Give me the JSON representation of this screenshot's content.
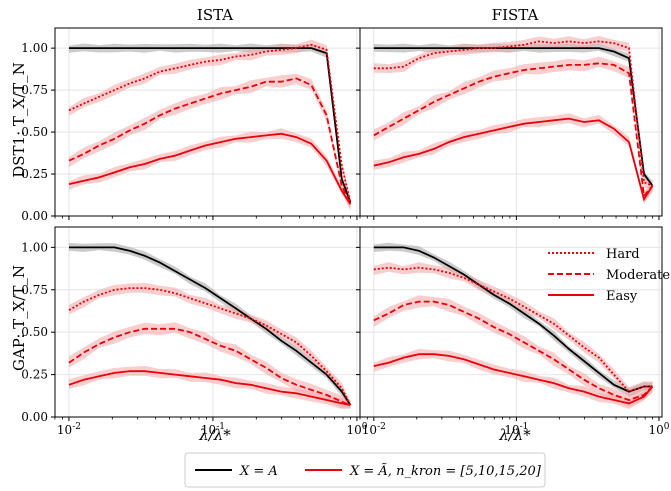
{
  "figure": {
    "colors": {
      "full": "#000000",
      "reduced": "#e8000b",
      "band_reduced": "#f4a6a6",
      "band_full": "#a8a8a8"
    },
    "legend_box": {
      "full_label": "X = A",
      "reduced_label": "X = Ã, n_kron = [5,10,15,20]"
    },
    "inner_legend": [
      "Hard",
      "Moderate",
      "Easy"
    ]
  },
  "chart_data": [
    {
      "type": "line",
      "title": "ISTA",
      "ylabel": "DST1:  T_X/T_N",
      "xlabel": "",
      "xscale": "log",
      "xlim": [
        0.008,
        1.05
      ],
      "ylim": [
        0,
        1.12
      ],
      "xticks": [
        "10^-2",
        "10^-1",
        "10^0"
      ],
      "yticks": [
        "0.00",
        "0.25",
        "0.50",
        "0.75",
        "1.00"
      ],
      "x": [
        0.01,
        0.0127,
        0.0162,
        0.0207,
        0.0264,
        0.0336,
        0.0428,
        0.0546,
        0.0695,
        0.0886,
        0.113,
        0.144,
        0.183,
        0.234,
        0.298,
        0.379,
        0.483,
        0.616,
        0.785,
        0.9
      ],
      "series": [
        {
          "name": "X = A",
          "values": [
            1.0,
            1.0,
            1.0,
            1.0,
            1.0,
            1.0,
            1.0,
            1.0,
            1.0,
            1.0,
            1.0,
            1.0,
            1.0,
            1.0,
            1.0,
            1.0,
            1.0,
            0.97,
            0.22,
            0.08
          ]
        },
        {
          "name": "Hard",
          "values": [
            0.63,
            0.67,
            0.71,
            0.75,
            0.79,
            0.82,
            0.86,
            0.88,
            0.9,
            0.92,
            0.93,
            0.95,
            0.96,
            0.98,
            0.99,
            1.0,
            1.02,
            0.99,
            0.3,
            0.08
          ]
        },
        {
          "name": "Moderate",
          "values": [
            0.33,
            0.37,
            0.42,
            0.46,
            0.51,
            0.55,
            0.6,
            0.64,
            0.67,
            0.7,
            0.73,
            0.75,
            0.77,
            0.8,
            0.8,
            0.82,
            0.78,
            0.6,
            0.18,
            0.07
          ]
        },
        {
          "name": "Easy",
          "values": [
            0.19,
            0.21,
            0.23,
            0.26,
            0.29,
            0.31,
            0.34,
            0.36,
            0.39,
            0.42,
            0.44,
            0.46,
            0.47,
            0.48,
            0.49,
            0.47,
            0.43,
            0.33,
            0.15,
            0.07
          ]
        }
      ]
    },
    {
      "type": "line",
      "title": "FISTA",
      "ylabel": "",
      "xlabel": "",
      "xscale": "log",
      "xlim": [
        0.008,
        1.05
      ],
      "ylim": [
        0,
        1.12
      ],
      "xticks": [
        "10^-2",
        "10^-1",
        "10^0"
      ],
      "yticks": [],
      "x": [
        0.01,
        0.0127,
        0.0162,
        0.0207,
        0.0264,
        0.0336,
        0.0428,
        0.0546,
        0.0695,
        0.0886,
        0.113,
        0.144,
        0.183,
        0.234,
        0.298,
        0.379,
        0.483,
        0.616,
        0.785,
        0.9
      ],
      "series": [
        {
          "name": "X = A",
          "values": [
            1.0,
            1.0,
            1.0,
            1.0,
            1.0,
            1.0,
            1.0,
            1.0,
            1.0,
            1.0,
            1.0,
            1.0,
            1.0,
            1.0,
            1.0,
            1.0,
            0.98,
            0.94,
            0.25,
            0.18
          ]
        },
        {
          "name": "Hard",
          "values": [
            0.88,
            0.88,
            0.89,
            0.94,
            0.97,
            0.98,
            0.99,
            1.0,
            1.0,
            1.01,
            1.02,
            1.04,
            1.03,
            1.04,
            1.03,
            1.04,
            1.03,
            1.0,
            0.2,
            0.18
          ]
        },
        {
          "name": "Moderate",
          "values": [
            0.48,
            0.53,
            0.58,
            0.63,
            0.68,
            0.72,
            0.76,
            0.8,
            0.83,
            0.85,
            0.87,
            0.88,
            0.89,
            0.9,
            0.9,
            0.91,
            0.9,
            0.85,
            0.12,
            0.18
          ]
        },
        {
          "name": "Easy",
          "values": [
            0.3,
            0.32,
            0.35,
            0.37,
            0.4,
            0.44,
            0.47,
            0.49,
            0.51,
            0.53,
            0.55,
            0.56,
            0.57,
            0.58,
            0.56,
            0.57,
            0.52,
            0.44,
            0.1,
            0.18
          ]
        }
      ]
    },
    {
      "type": "line",
      "title": "",
      "ylabel": "GAP:  T_X/T_N",
      "xlabel": "λ/λ*",
      "xscale": "log",
      "xlim": [
        0.008,
        1.05
      ],
      "ylim": [
        0,
        1.12
      ],
      "xticks": [
        "10^-2",
        "10^-1",
        "10^0"
      ],
      "yticks": [
        "0.00",
        "0.25",
        "0.50",
        "0.75",
        "1.00"
      ],
      "x": [
        0.01,
        0.0127,
        0.0162,
        0.0207,
        0.0264,
        0.0336,
        0.0428,
        0.0546,
        0.0695,
        0.0886,
        0.113,
        0.144,
        0.183,
        0.234,
        0.298,
        0.379,
        0.483,
        0.616,
        0.785,
        0.9
      ],
      "series": [
        {
          "name": "X = A",
          "values": [
            1.0,
            1.0,
            1.0,
            1.0,
            0.98,
            0.95,
            0.91,
            0.86,
            0.81,
            0.76,
            0.7,
            0.64,
            0.58,
            0.52,
            0.45,
            0.39,
            0.32,
            0.25,
            0.15,
            0.07
          ]
        },
        {
          "name": "Hard",
          "values": [
            0.63,
            0.68,
            0.72,
            0.75,
            0.76,
            0.76,
            0.75,
            0.73,
            0.7,
            0.67,
            0.64,
            0.61,
            0.58,
            0.54,
            0.49,
            0.44,
            0.36,
            0.27,
            0.17,
            0.07
          ]
        },
        {
          "name": "Moderate",
          "values": [
            0.32,
            0.38,
            0.43,
            0.47,
            0.5,
            0.52,
            0.52,
            0.52,
            0.5,
            0.46,
            0.42,
            0.39,
            0.34,
            0.29,
            0.23,
            0.19,
            0.16,
            0.13,
            0.09,
            0.07
          ]
        },
        {
          "name": "Easy",
          "values": [
            0.19,
            0.22,
            0.24,
            0.26,
            0.27,
            0.27,
            0.26,
            0.25,
            0.24,
            0.23,
            0.22,
            0.2,
            0.19,
            0.17,
            0.15,
            0.14,
            0.12,
            0.1,
            0.08,
            0.07
          ]
        }
      ]
    },
    {
      "type": "line",
      "title": "",
      "ylabel": "",
      "xlabel": "λ/λ*",
      "xscale": "log",
      "xlim": [
        0.008,
        1.05
      ],
      "ylim": [
        0,
        1.12
      ],
      "xticks": [
        "10^-2",
        "10^-1",
        "10^0"
      ],
      "yticks": [],
      "x": [
        0.01,
        0.0127,
        0.0162,
        0.0207,
        0.0264,
        0.0336,
        0.0428,
        0.0546,
        0.0695,
        0.0886,
        0.113,
        0.144,
        0.183,
        0.234,
        0.298,
        0.379,
        0.483,
        0.616,
        0.785,
        0.9
      ],
      "series": [
        {
          "name": "X = A",
          "values": [
            1.0,
            1.0,
            1.0,
            0.98,
            0.94,
            0.89,
            0.84,
            0.78,
            0.72,
            0.67,
            0.61,
            0.55,
            0.48,
            0.4,
            0.33,
            0.26,
            0.19,
            0.15,
            0.18,
            0.18
          ]
        },
        {
          "name": "Hard",
          "values": [
            0.87,
            0.88,
            0.87,
            0.88,
            0.87,
            0.85,
            0.82,
            0.78,
            0.74,
            0.7,
            0.65,
            0.6,
            0.55,
            0.48,
            0.41,
            0.35,
            0.25,
            0.15,
            0.18,
            0.18
          ]
        },
        {
          "name": "Moderate",
          "values": [
            0.57,
            0.61,
            0.66,
            0.68,
            0.68,
            0.66,
            0.62,
            0.58,
            0.53,
            0.49,
            0.44,
            0.39,
            0.34,
            0.28,
            0.22,
            0.17,
            0.13,
            0.1,
            0.13,
            0.18
          ]
        },
        {
          "name": "Easy",
          "values": [
            0.3,
            0.32,
            0.35,
            0.37,
            0.37,
            0.36,
            0.34,
            0.31,
            0.28,
            0.26,
            0.24,
            0.22,
            0.2,
            0.17,
            0.15,
            0.12,
            0.1,
            0.08,
            0.12,
            0.18
          ]
        }
      ]
    }
  ]
}
